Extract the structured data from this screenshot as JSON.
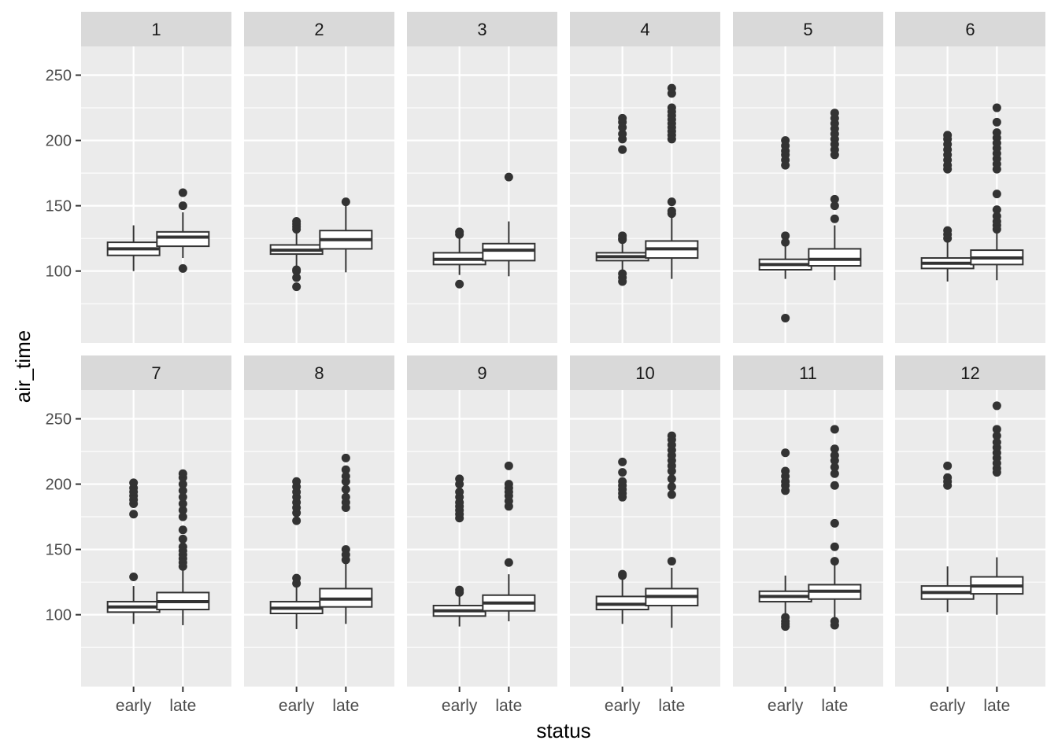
{
  "chart_data": {
    "type": "boxplot",
    "facet_by": "month",
    "layout": {
      "rows": 2,
      "cols": 6
    },
    "xlabel": "status",
    "ylabel": "air_time",
    "categories": [
      "early",
      "late"
    ],
    "ylim": [
      45,
      272
    ],
    "yticks": [
      100,
      150,
      200,
      250
    ],
    "grid": true,
    "colors": {
      "panel_bg": "#EBEBEB",
      "strip_bg": "#D9D9D9",
      "grid": "#FFFFFF",
      "box_fill": "#FFFFFF",
      "box_line": "#333333",
      "outlier": "#333333",
      "text": "#4D4D4D",
      "title": "#000000"
    },
    "facets": [
      {
        "label": "1",
        "boxes": [
          {
            "status": "early",
            "lower": 100,
            "q1": 112,
            "median": 117,
            "q3": 122,
            "upper": 135,
            "outliers": []
          },
          {
            "status": "late",
            "lower": 110,
            "q1": 119,
            "median": 126,
            "q3": 130,
            "upper": 145,
            "outliers": [
              102,
              150,
              160
            ]
          }
        ]
      },
      {
        "label": "2",
        "boxes": [
          {
            "status": "early",
            "lower": 102,
            "q1": 113,
            "median": 116,
            "q3": 120,
            "upper": 130,
            "outliers": [
              88,
              95,
              100,
              101,
              132,
              134,
              136,
              138
            ]
          },
          {
            "status": "late",
            "lower": 99,
            "q1": 117,
            "median": 124,
            "q3": 131,
            "upper": 150,
            "outliers": [
              153
            ]
          }
        ]
      },
      {
        "label": "3",
        "boxes": [
          {
            "status": "early",
            "lower": 97,
            "q1": 105,
            "median": 109,
            "q3": 114,
            "upper": 125,
            "outliers": [
              90,
              128,
              130
            ]
          },
          {
            "status": "late",
            "lower": 96,
            "q1": 108,
            "median": 116,
            "q3": 121,
            "upper": 138,
            "outliers": [
              172
            ]
          }
        ]
      },
      {
        "label": "4",
        "boxes": [
          {
            "status": "early",
            "lower": 99,
            "q1": 108,
            "median": 111,
            "q3": 114,
            "upper": 122,
            "outliers": [
              92,
              95,
              98,
              124,
              125,
              127,
              193,
              201,
              205,
              210,
              214,
              217
            ]
          },
          {
            "status": "late",
            "lower": 94,
            "q1": 110,
            "median": 117,
            "q3": 123,
            "upper": 142,
            "outliers": [
              144,
              146,
              153,
              201,
              204,
              207,
              210,
              213,
              216,
              219,
              222,
              225,
              236,
              240
            ]
          }
        ]
      },
      {
        "label": "5",
        "boxes": [
          {
            "status": "early",
            "lower": 94,
            "q1": 101,
            "median": 105,
            "q3": 109,
            "upper": 120,
            "outliers": [
              64,
              122,
              127,
              181,
              185,
              189,
              192,
              196,
              200
            ]
          },
          {
            "status": "late",
            "lower": 93,
            "q1": 104,
            "median": 109,
            "q3": 117,
            "upper": 135,
            "outliers": [
              140,
              150,
              155,
              189,
              193,
              197,
              201,
              205,
              209,
              213,
              217,
              221
            ]
          }
        ]
      },
      {
        "label": "6",
        "boxes": [
          {
            "status": "early",
            "lower": 92,
            "q1": 102,
            "median": 106,
            "q3": 110,
            "upper": 122,
            "outliers": [
              125,
              128,
              131,
              178,
              181,
              185,
              189,
              193,
              197,
              201,
              204
            ]
          },
          {
            "status": "late",
            "lower": 93,
            "q1": 105,
            "median": 110,
            "q3": 116,
            "upper": 130,
            "outliers": [
              132,
              135,
              138,
              142,
              147,
              159,
              178,
              182,
              186,
              190,
              194,
              198,
              202,
              206,
              214,
              225
            ]
          }
        ]
      },
      {
        "label": "7",
        "boxes": [
          {
            "status": "early",
            "lower": 93,
            "q1": 102,
            "median": 106,
            "q3": 110,
            "upper": 122,
            "outliers": [
              129,
              177,
              185,
              188,
              191,
              194,
              197,
              201
            ]
          },
          {
            "status": "late",
            "lower": 92,
            "q1": 104,
            "median": 110,
            "q3": 117,
            "upper": 135,
            "outliers": [
              137,
              140,
              143,
              146,
              149,
              152,
              158,
              165,
              175,
              180,
              185,
              190,
              195,
              200,
              205,
              208
            ]
          }
        ]
      },
      {
        "label": "8",
        "boxes": [
          {
            "status": "early",
            "lower": 89,
            "q1": 101,
            "median": 105,
            "q3": 110,
            "upper": 121,
            "outliers": [
              124,
              128,
              172,
              178,
              182,
              186,
              190,
              194,
              198,
              202
            ]
          },
          {
            "status": "late",
            "lower": 93,
            "q1": 106,
            "median": 112,
            "q3": 120,
            "upper": 140,
            "outliers": [
              142,
              146,
              150,
              182,
              186,
              190,
              196,
              202,
              206,
              211,
              220
            ]
          }
        ]
      },
      {
        "label": "9",
        "boxes": [
          {
            "status": "early",
            "lower": 91,
            "q1": 99,
            "median": 103,
            "q3": 107,
            "upper": 115,
            "outliers": [
              117,
              119,
              174,
              177,
              180,
              183,
              186,
              190,
              194,
              200,
              204
            ]
          },
          {
            "status": "late",
            "lower": 95,
            "q1": 103,
            "median": 109,
            "q3": 115,
            "upper": 131,
            "outliers": [
              140,
              183,
              187,
              191,
              194,
              197,
              200,
              214
            ]
          }
        ]
      },
      {
        "label": "10",
        "boxes": [
          {
            "status": "early",
            "lower": 93,
            "q1": 104,
            "median": 108,
            "q3": 114,
            "upper": 127,
            "outliers": [
              130,
              131,
              190,
              193,
              196,
              199,
              202,
              209,
              217
            ]
          },
          {
            "status": "late",
            "lower": 90,
            "q1": 107,
            "median": 114,
            "q3": 120,
            "upper": 136,
            "outliers": [
              141,
              192,
              198,
              204,
              210,
              214,
              218,
              222,
              226,
              230,
              234,
              237
            ]
          }
        ]
      },
      {
        "label": "11",
        "boxes": [
          {
            "status": "early",
            "lower": 100,
            "q1": 110,
            "median": 114,
            "q3": 118,
            "upper": 130,
            "outliers": [
              91,
              93,
              95,
              98,
              195,
              199,
              202,
              206,
              210,
              224
            ]
          },
          {
            "status": "late",
            "lower": 97,
            "q1": 112,
            "median": 118,
            "q3": 123,
            "upper": 138,
            "outliers": [
              92,
              95,
              141,
              152,
              170,
              199,
              208,
              213,
              218,
              222,
              227,
              242
            ]
          }
        ]
      },
      {
        "label": "12",
        "boxes": [
          {
            "status": "early",
            "lower": 102,
            "q1": 112,
            "median": 117,
            "q3": 122,
            "upper": 137,
            "outliers": [
              199,
              202,
              205,
              214
            ]
          },
          {
            "status": "late",
            "lower": 100,
            "q1": 116,
            "median": 122,
            "q3": 129,
            "upper": 144,
            "outliers": [
              209,
              212,
              216,
              220,
              224,
              228,
              232,
              237,
              242,
              260
            ]
          }
        ]
      }
    ]
  }
}
